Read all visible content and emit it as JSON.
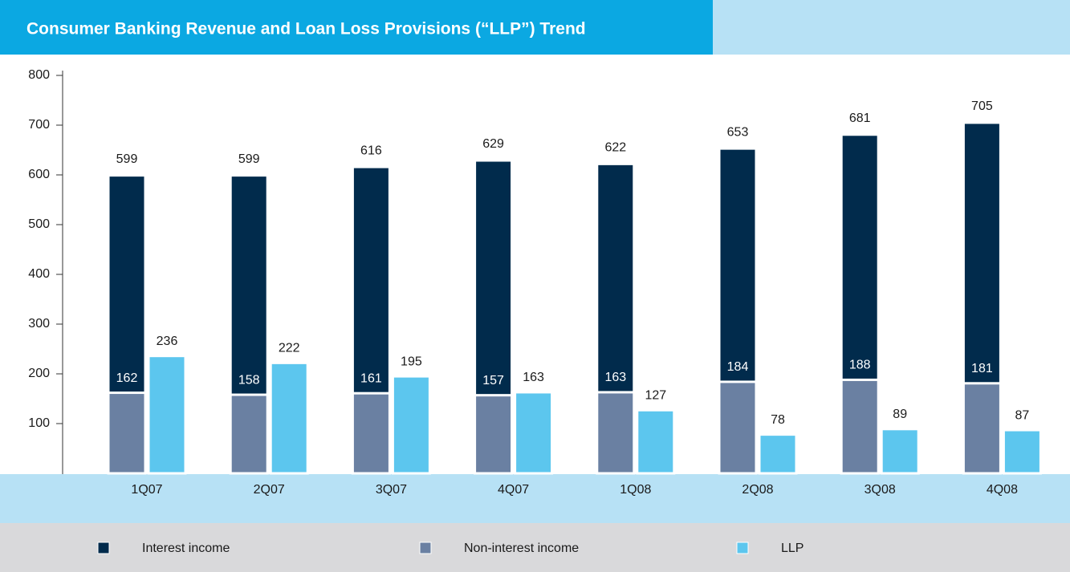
{
  "chart_data": {
    "type": "bar",
    "title": "Consumer Banking Revenue and Loan Loss Provisions (“LLP”) Trend",
    "categories": [
      "1Q07",
      "2Q07",
      "3Q07",
      "4Q07",
      "1Q08",
      "2Q08",
      "3Q08",
      "4Q08"
    ],
    "series": [
      {
        "name": "Interest income",
        "color": "#012b4c",
        "values": [
          599,
          599,
          616,
          629,
          622,
          653,
          681,
          705
        ]
      },
      {
        "name": "Non-interest income",
        "color": "#6a80a2",
        "values": [
          162,
          158,
          161,
          157,
          163,
          184,
          188,
          181
        ]
      },
      {
        "name": "LLP",
        "color": "#5cc6ee",
        "values": [
          236,
          222,
          195,
          163,
          127,
          78,
          89,
          87
        ]
      }
    ],
    "ylim": [
      0,
      800
    ],
    "yticks": [
      100,
      200,
      300,
      400,
      500,
      600,
      700,
      800
    ]
  }
}
